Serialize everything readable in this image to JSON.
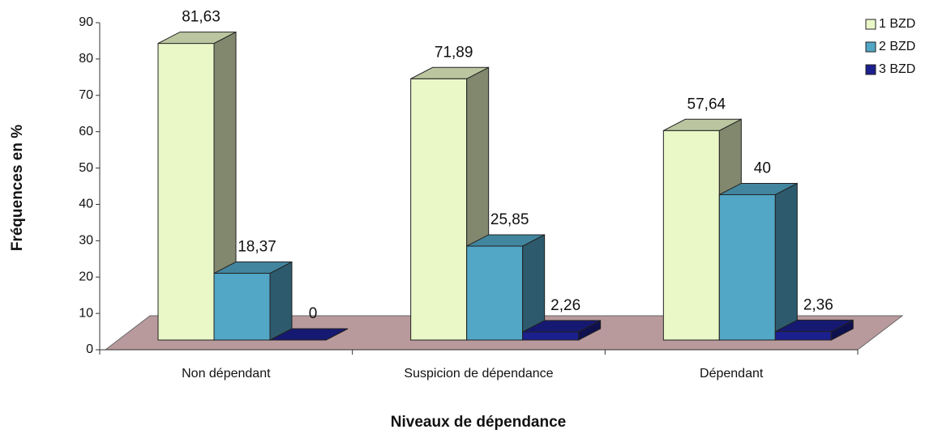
{
  "chart_data": {
    "type": "bar3d",
    "ylabel": "Fréquences en %",
    "xlabel": "Niveaux de dépendance",
    "categories": [
      "Non dépendant",
      "Suspicion de dépendance",
      "Dépendant"
    ],
    "series": [
      {
        "name": "1 BZD",
        "color": "#eaf8c8",
        "values": [
          81.63,
          71.89,
          57.64
        ],
        "value_labels": [
          "81,63",
          "71,89",
          "57,64"
        ]
      },
      {
        "name": "2 BZD",
        "color": "#52a6c6",
        "values": [
          18.37,
          25.85,
          40
        ],
        "value_labels": [
          "18,37",
          "25,85",
          "40"
        ]
      },
      {
        "name": "3 BZD",
        "color": "#1c1f8e",
        "values": [
          0,
          2.26,
          2.36
        ],
        "value_labels": [
          "0",
          "2,26",
          "2,36"
        ]
      }
    ],
    "ylim": [
      0,
      90
    ],
    "yticks": [
      0,
      10,
      20,
      30,
      40,
      50,
      60,
      70,
      80,
      90
    ],
    "floor_color": "#b99a9c",
    "legend": "upper right"
  }
}
